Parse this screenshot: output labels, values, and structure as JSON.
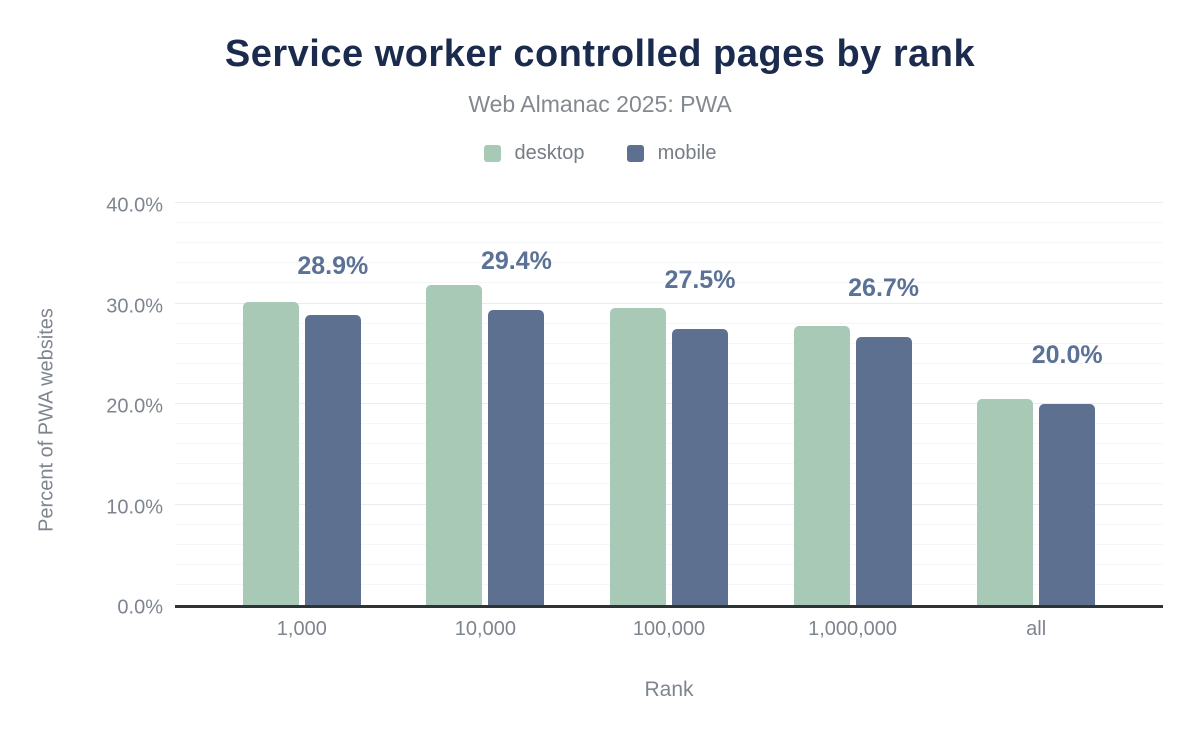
{
  "chart_data": {
    "type": "bar",
    "title": "Service worker controlled pages by rank",
    "subtitle": "Web Almanac 2025: PWA",
    "xlabel": "Rank",
    "ylabel": "Percent of PWA websites",
    "categories": [
      "1,000",
      "10,000",
      "100,000",
      "1,000,000",
      "all"
    ],
    "series": [
      {
        "name": "desktop",
        "color": "#a8c9b6",
        "values": [
          30.2,
          31.8,
          29.6,
          27.8,
          20.5
        ]
      },
      {
        "name": "mobile",
        "color": "#5d7090",
        "values": [
          28.9,
          29.4,
          27.5,
          26.7,
          20.0
        ]
      }
    ],
    "annotations": {
      "series": "mobile",
      "labels": [
        "28.9%",
        "29.4%",
        "27.5%",
        "26.7%",
        "20.0%"
      ]
    },
    "ylim": [
      0,
      40
    ],
    "yticks": [
      {
        "value": 0,
        "label": "0.0%"
      },
      {
        "value": 10,
        "label": "10.0%"
      },
      {
        "value": 20,
        "label": "20.0%"
      },
      {
        "value": 30,
        "label": "30.0%"
      },
      {
        "value": 40,
        "label": "40.0%"
      }
    ],
    "grid": {
      "minor_step": 2,
      "major_step": 10,
      "grid_on": true
    },
    "legend_position": "top"
  },
  "colors": {
    "title": "#1b2b4d",
    "subtitle": "#83898f",
    "axis_text": "#7e858f",
    "annotation": "#5b7195",
    "axis_line": "#2e3336",
    "grid_major": "#e9ebee",
    "grid_minor": "#f5f6f7",
    "desktop": "#a8c9b6",
    "mobile": "#5d7090"
  }
}
